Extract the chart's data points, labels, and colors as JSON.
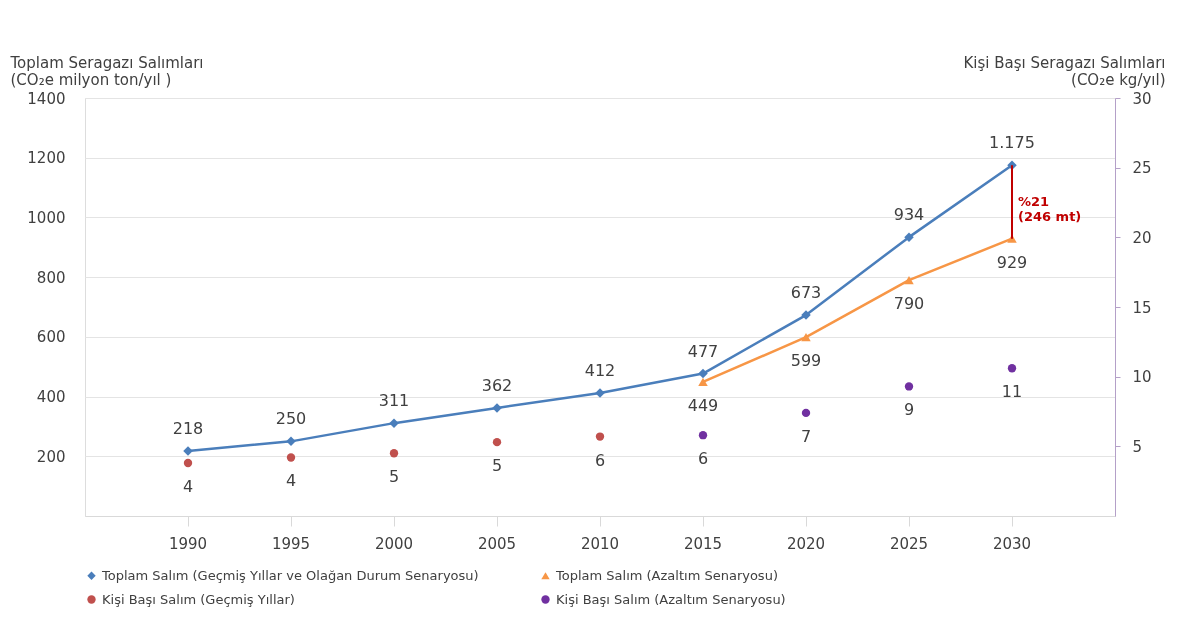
{
  "chart_data": {
    "type": "line",
    "ylabel": "Toplam Seragazı Salımları\n(CO₂e milyon ton/yıl )",
    "y2label": "Kişi Başı Seragazı Salımları\n(CO₂e kg/yıl)",
    "categories": [
      "1990",
      "1995",
      "2000",
      "2005",
      "2010",
      "2015",
      "2020",
      "2025",
      "2030"
    ],
    "series": [
      {
        "name": "Toplam Salım (Geçmiş Yıllar ve Olağan Durum Senaryosu)",
        "marker": "diamond",
        "color": "#4a7ebb",
        "values": [
          218,
          250,
          311,
          362,
          412,
          477,
          673,
          934,
          1175
        ],
        "value_labels": [
          "218",
          "250",
          "311",
          "362",
          "412",
          "477",
          "673",
          "934",
          "1.175"
        ]
      },
      {
        "name": "Toplam Salım (Azaltım Senaryosu)",
        "marker": "triangle",
        "color": "#f79646",
        "values": [
          null,
          null,
          null,
          null,
          null,
          449,
          599,
          790,
          929
        ],
        "value_labels": [
          null,
          null,
          null,
          null,
          null,
          "449",
          "599",
          "790",
          "929"
        ]
      },
      {
        "name": "Kişi Başı Salım (Geçmiş Yıllar)",
        "type": "scatter",
        "marker": "circle",
        "axis": "y2",
        "color": "#c0504d",
        "values": [
          3.8,
          4.2,
          4.5,
          5.3,
          5.7,
          null,
          null,
          null,
          null
        ],
        "value_labels": [
          "4",
          "4",
          "5",
          "5",
          "6",
          null,
          null,
          null,
          null
        ]
      },
      {
        "name": "Kişi Başı Salım (Azaltım Senaryosu)",
        "type": "scatter",
        "marker": "circle",
        "axis": "y2",
        "color": "#7030a0",
        "values": [
          null,
          null,
          null,
          null,
          null,
          5.8,
          7.4,
          9.3,
          10.6
        ],
        "value_labels": [
          null,
          null,
          null,
          null,
          null,
          "6",
          "7",
          "9",
          "11"
        ]
      }
    ],
    "ylim": [
      0,
      1400
    ],
    "yticks": [
      200,
      400,
      600,
      800,
      1000,
      1200,
      1400
    ],
    "y2lim": [
      0,
      30
    ],
    "y2ticks": [
      5,
      10,
      15,
      20,
      25,
      30
    ],
    "annotations": [
      {
        "text": "%21\n(246 mt)",
        "x": "2030",
        "y": 929
      }
    ],
    "grid": "y",
    "legend": "bottom"
  }
}
